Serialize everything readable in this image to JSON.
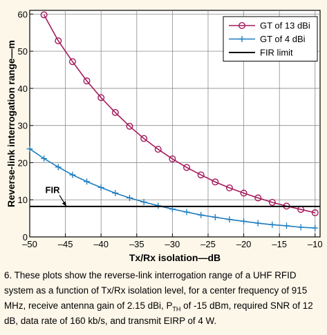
{
  "caption": {
    "part1": "6. These plots show the reverse-link interrogation range of a UHF RFID system as a function of Tx/Rx isolation level, for a center frequency of 915 MHz, receive antenna gain of 2.15 dBi, P",
    "sub": "TH",
    "part2": " of -15 dBm, required SNR of 12 dB, data rate of 160 kb/s, and transmit EIRP of 4 W."
  },
  "colors": {
    "gt13": "#a3195b",
    "gt4": "#1a7bbf",
    "fir": "#000000",
    "plot_bg": "#ffffff",
    "page_bg": "#fdf7ea"
  },
  "chart_data": {
    "type": "line",
    "xlabel": "Tx/Rx isolation—dB",
    "ylabel": "Reverse-link interrogation range—m",
    "xlim": [
      -50,
      -9.3
    ],
    "ylim": [
      0,
      61
    ],
    "xticks": [
      -50,
      -45,
      -40,
      -35,
      -30,
      -25,
      -20,
      -15,
      -10
    ],
    "xtick_labels": [
      "–50",
      "–45",
      "–40",
      "–35",
      "–30",
      "–25",
      "–20",
      "–15",
      "–10"
    ],
    "yticks": [
      0,
      10,
      20,
      30,
      40,
      50,
      60
    ],
    "ytick_labels": [
      "0",
      "10",
      "20",
      "30",
      "40",
      "50",
      "60"
    ],
    "grid": true,
    "legend_position": "top-right",
    "series": [
      {
        "name": "GT of 13 dBi",
        "marker": "circle",
        "color_key": "gt13",
        "x": [
          -48,
          -46,
          -44,
          -42,
          -40,
          -38,
          -36,
          -34,
          -32,
          -30,
          -28,
          -26,
          -24,
          -22,
          -20,
          -18,
          -16,
          -14,
          -12,
          -10
        ],
        "y": [
          59.8,
          52.8,
          47.2,
          42.0,
          37.5,
          33.5,
          29.8,
          26.5,
          23.6,
          21.0,
          18.7,
          16.7,
          14.8,
          13.2,
          11.8,
          10.5,
          9.3,
          8.3,
          7.4,
          6.5
        ]
      },
      {
        "name": "GT of 4 dBi",
        "marker": "plus",
        "color_key": "gt4",
        "x": [
          -50,
          -48,
          -46,
          -44,
          -42,
          -40,
          -38,
          -36,
          -34,
          -32,
          -30,
          -28,
          -26,
          -24,
          -22,
          -20,
          -18,
          -16,
          -14,
          -12,
          -10
        ],
        "y": [
          23.7,
          21.1,
          18.8,
          16.7,
          14.9,
          13.3,
          11.8,
          10.5,
          9.4,
          8.4,
          7.5,
          6.7,
          5.9,
          5.3,
          4.7,
          4.2,
          3.7,
          3.3,
          3.0,
          2.6,
          2.4
        ]
      },
      {
        "name": "FIR limit",
        "marker": "none",
        "color_key": "fir",
        "x": [
          -50,
          -9.3
        ],
        "y": [
          8.2,
          8.2
        ]
      }
    ],
    "annotations": [
      {
        "text": "FIR",
        "x": -46.8,
        "y": 11.8,
        "arrow_to": [
          -44.9,
          8.3
        ]
      }
    ]
  }
}
